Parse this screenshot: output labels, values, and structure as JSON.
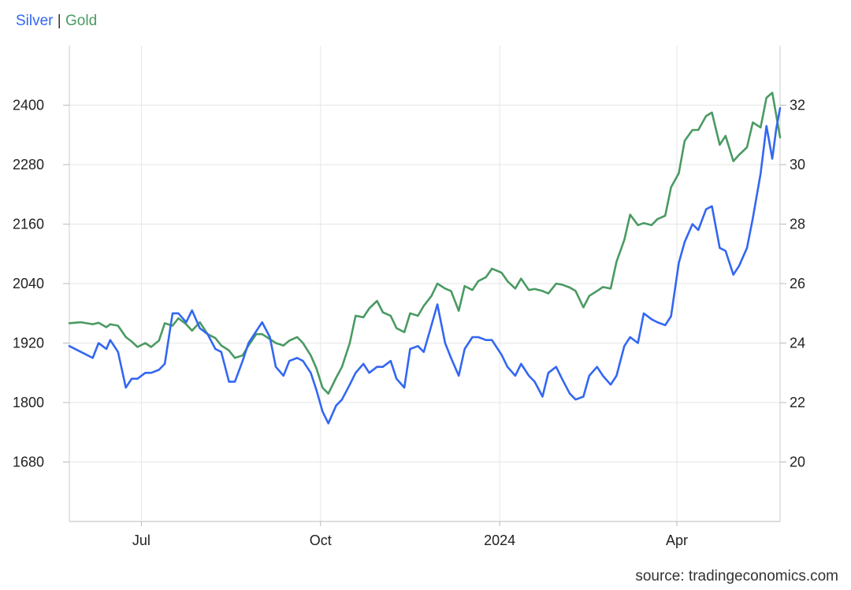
{
  "legend": {
    "silver": "Silver",
    "separator": "|",
    "gold": "Gold"
  },
  "source": "source: tradingeconomics.com",
  "chart_data": {
    "type": "line",
    "x_range": [
      "2023-05-25",
      "2024-05-24"
    ],
    "x_ticks": [
      {
        "label": "Jul",
        "date": "2023-07-01"
      },
      {
        "label": "Oct",
        "date": "2023-10-01"
      },
      {
        "label": "2024",
        "date": "2024-01-01"
      },
      {
        "label": "Apr",
        "date": "2024-04-01"
      }
    ],
    "y_left": {
      "series": "Gold",
      "lim": [
        1560,
        2520
      ],
      "ticks": [
        1680,
        1800,
        1920,
        2040,
        2160,
        2280,
        2400
      ]
    },
    "y_right": {
      "series": "Silver",
      "lim": [
        18,
        34
      ],
      "ticks": [
        20,
        22,
        24,
        26,
        28,
        30,
        32
      ]
    },
    "grid": true,
    "legend_position": "top-left",
    "colors": {
      "silver": "#3367f2",
      "gold": "#4a9a62"
    },
    "series": [
      {
        "name": "Silver",
        "axis": "right",
        "points": [
          [
            "2023-05-25",
            23.9
          ],
          [
            "2023-05-31",
            23.7
          ],
          [
            "2023-06-06",
            23.5
          ],
          [
            "2023-06-09",
            24.0
          ],
          [
            "2023-06-13",
            23.8
          ],
          [
            "2023-06-15",
            24.1
          ],
          [
            "2023-06-19",
            23.7
          ],
          [
            "2023-06-23",
            22.5
          ],
          [
            "2023-06-26",
            22.8
          ],
          [
            "2023-06-29",
            22.8
          ],
          [
            "2023-07-03",
            23.0
          ],
          [
            "2023-07-06",
            23.0
          ],
          [
            "2023-07-10",
            23.1
          ],
          [
            "2023-07-13",
            23.3
          ],
          [
            "2023-07-17",
            25.0
          ],
          [
            "2023-07-20",
            25.0
          ],
          [
            "2023-07-24",
            24.7
          ],
          [
            "2023-07-27",
            25.1
          ],
          [
            "2023-07-31",
            24.5
          ],
          [
            "2023-08-04",
            24.3
          ],
          [
            "2023-08-08",
            23.8
          ],
          [
            "2023-08-11",
            23.7
          ],
          [
            "2023-08-15",
            22.7
          ],
          [
            "2023-08-18",
            22.7
          ],
          [
            "2023-08-22",
            23.4
          ],
          [
            "2023-08-25",
            24.0
          ],
          [
            "2023-08-29",
            24.4
          ],
          [
            "2023-09-01",
            24.7
          ],
          [
            "2023-09-05",
            24.2
          ],
          [
            "2023-09-08",
            23.2
          ],
          [
            "2023-09-12",
            22.9
          ],
          [
            "2023-09-15",
            23.4
          ],
          [
            "2023-09-19",
            23.5
          ],
          [
            "2023-09-22",
            23.4
          ],
          [
            "2023-09-26",
            23.0
          ],
          [
            "2023-09-29",
            22.4
          ],
          [
            "2023-10-02",
            21.7
          ],
          [
            "2023-10-05",
            21.3
          ],
          [
            "2023-10-09",
            21.9
          ],
          [
            "2023-10-12",
            22.1
          ],
          [
            "2023-10-16",
            22.6
          ],
          [
            "2023-10-19",
            23.0
          ],
          [
            "2023-10-23",
            23.3
          ],
          [
            "2023-10-26",
            23.0
          ],
          [
            "2023-10-30",
            23.2
          ],
          [
            "2023-11-02",
            23.2
          ],
          [
            "2023-11-06",
            23.4
          ],
          [
            "2023-11-09",
            22.8
          ],
          [
            "2023-11-13",
            22.5
          ],
          [
            "2023-11-16",
            23.8
          ],
          [
            "2023-11-20",
            23.9
          ],
          [
            "2023-11-23",
            23.7
          ],
          [
            "2023-11-27",
            24.6
          ],
          [
            "2023-11-30",
            25.3
          ],
          [
            "2023-12-04",
            24.0
          ],
          [
            "2023-12-07",
            23.5
          ],
          [
            "2023-12-11",
            22.9
          ],
          [
            "2023-12-14",
            23.8
          ],
          [
            "2023-12-18",
            24.2
          ],
          [
            "2023-12-21",
            24.2
          ],
          [
            "2023-12-25",
            24.1
          ],
          [
            "2023-12-28",
            24.1
          ],
          [
            "2024-01-02",
            23.6
          ],
          [
            "2024-01-05",
            23.2
          ],
          [
            "2024-01-09",
            22.9
          ],
          [
            "2024-01-12",
            23.3
          ],
          [
            "2024-01-16",
            22.9
          ],
          [
            "2024-01-19",
            22.7
          ],
          [
            "2024-01-23",
            22.2
          ],
          [
            "2024-01-26",
            23.0
          ],
          [
            "2024-01-30",
            23.2
          ],
          [
            "2024-02-02",
            22.8
          ],
          [
            "2024-02-06",
            22.3
          ],
          [
            "2024-02-09",
            22.1
          ],
          [
            "2024-02-13",
            22.2
          ],
          [
            "2024-02-16",
            22.9
          ],
          [
            "2024-02-20",
            23.2
          ],
          [
            "2024-02-23",
            22.9
          ],
          [
            "2024-02-27",
            22.6
          ],
          [
            "2024-03-01",
            22.9
          ],
          [
            "2024-03-05",
            23.9
          ],
          [
            "2024-03-08",
            24.2
          ],
          [
            "2024-03-12",
            24.0
          ],
          [
            "2024-03-15",
            25.0
          ],
          [
            "2024-03-19",
            24.8
          ],
          [
            "2024-03-22",
            24.7
          ],
          [
            "2024-03-26",
            24.6
          ],
          [
            "2024-03-29",
            24.9
          ],
          [
            "2024-04-02",
            26.7
          ],
          [
            "2024-04-05",
            27.4
          ],
          [
            "2024-04-09",
            28.0
          ],
          [
            "2024-04-12",
            27.8
          ],
          [
            "2024-04-16",
            28.5
          ],
          [
            "2024-04-19",
            28.6
          ],
          [
            "2024-04-23",
            27.2
          ],
          [
            "2024-04-26",
            27.1
          ],
          [
            "2024-04-30",
            26.3
          ],
          [
            "2024-05-03",
            26.6
          ],
          [
            "2024-05-07",
            27.2
          ],
          [
            "2024-05-10",
            28.2
          ],
          [
            "2024-05-14",
            29.7
          ],
          [
            "2024-05-17",
            31.3
          ],
          [
            "2024-05-20",
            30.2
          ],
          [
            "2024-05-22",
            31.2
          ],
          [
            "2024-05-24",
            31.9
          ]
        ]
      },
      {
        "name": "Gold",
        "axis": "left",
        "points": [
          [
            "2023-05-25",
            1960
          ],
          [
            "2023-05-31",
            1962
          ],
          [
            "2023-06-06",
            1958
          ],
          [
            "2023-06-09",
            1961
          ],
          [
            "2023-06-13",
            1952
          ],
          [
            "2023-06-15",
            1958
          ],
          [
            "2023-06-19",
            1955
          ],
          [
            "2023-06-23",
            1932
          ],
          [
            "2023-06-26",
            1923
          ],
          [
            "2023-06-29",
            1912
          ],
          [
            "2023-07-03",
            1920
          ],
          [
            "2023-07-06",
            1912
          ],
          [
            "2023-07-10",
            1925
          ],
          [
            "2023-07-13",
            1960
          ],
          [
            "2023-07-17",
            1955
          ],
          [
            "2023-07-20",
            1970
          ],
          [
            "2023-07-24",
            1958
          ],
          [
            "2023-07-27",
            1945
          ],
          [
            "2023-07-31",
            1962
          ],
          [
            "2023-08-04",
            1938
          ],
          [
            "2023-08-08",
            1930
          ],
          [
            "2023-08-11",
            1915
          ],
          [
            "2023-08-15",
            1905
          ],
          [
            "2023-08-18",
            1890
          ],
          [
            "2023-08-22",
            1895
          ],
          [
            "2023-08-25",
            1915
          ],
          [
            "2023-08-29",
            1938
          ],
          [
            "2023-09-01",
            1938
          ],
          [
            "2023-09-05",
            1928
          ],
          [
            "2023-09-08",
            1920
          ],
          [
            "2023-09-12",
            1915
          ],
          [
            "2023-09-15",
            1925
          ],
          [
            "2023-09-19",
            1932
          ],
          [
            "2023-09-22",
            1920
          ],
          [
            "2023-09-26",
            1895
          ],
          [
            "2023-09-29",
            1868
          ],
          [
            "2023-10-02",
            1830
          ],
          [
            "2023-10-05",
            1818
          ],
          [
            "2023-10-09",
            1850
          ],
          [
            "2023-10-12",
            1872
          ],
          [
            "2023-10-16",
            1920
          ],
          [
            "2023-10-19",
            1975
          ],
          [
            "2023-10-23",
            1972
          ],
          [
            "2023-10-26",
            1990
          ],
          [
            "2023-10-30",
            2005
          ],
          [
            "2023-11-02",
            1982
          ],
          [
            "2023-11-06",
            1975
          ],
          [
            "2023-11-09",
            1950
          ],
          [
            "2023-11-13",
            1942
          ],
          [
            "2023-11-16",
            1980
          ],
          [
            "2023-11-20",
            1975
          ],
          [
            "2023-11-23",
            1995
          ],
          [
            "2023-11-27",
            2015
          ],
          [
            "2023-11-30",
            2040
          ],
          [
            "2023-12-04",
            2030
          ],
          [
            "2023-12-07",
            2025
          ],
          [
            "2023-12-11",
            1985
          ],
          [
            "2023-12-14",
            2035
          ],
          [
            "2023-12-18",
            2027
          ],
          [
            "2023-12-21",
            2045
          ],
          [
            "2023-12-25",
            2053
          ],
          [
            "2023-12-28",
            2070
          ],
          [
            "2024-01-02",
            2062
          ],
          [
            "2024-01-05",
            2045
          ],
          [
            "2024-01-09",
            2030
          ],
          [
            "2024-01-12",
            2050
          ],
          [
            "2024-01-16",
            2027
          ],
          [
            "2024-01-19",
            2029
          ],
          [
            "2024-01-23",
            2025
          ],
          [
            "2024-01-26",
            2020
          ],
          [
            "2024-01-30",
            2040
          ],
          [
            "2024-02-02",
            2038
          ],
          [
            "2024-02-06",
            2032
          ],
          [
            "2024-02-09",
            2025
          ],
          [
            "2024-02-13",
            1992
          ],
          [
            "2024-02-16",
            2015
          ],
          [
            "2024-02-20",
            2025
          ],
          [
            "2024-02-23",
            2033
          ],
          [
            "2024-02-27",
            2030
          ],
          [
            "2024-03-01",
            2084
          ],
          [
            "2024-03-05",
            2128
          ],
          [
            "2024-03-08",
            2179
          ],
          [
            "2024-03-12",
            2158
          ],
          [
            "2024-03-15",
            2162
          ],
          [
            "2024-03-19",
            2158
          ],
          [
            "2024-03-22",
            2170
          ],
          [
            "2024-03-26",
            2177
          ],
          [
            "2024-03-29",
            2234
          ],
          [
            "2024-04-02",
            2263
          ],
          [
            "2024-04-05",
            2328
          ],
          [
            "2024-04-09",
            2350
          ],
          [
            "2024-04-12",
            2350
          ],
          [
            "2024-04-16",
            2378
          ],
          [
            "2024-04-19",
            2385
          ],
          [
            "2024-04-23",
            2320
          ],
          [
            "2024-04-26",
            2338
          ],
          [
            "2024-04-30",
            2287
          ],
          [
            "2024-05-03",
            2300
          ],
          [
            "2024-05-07",
            2315
          ],
          [
            "2024-05-10",
            2365
          ],
          [
            "2024-05-14",
            2355
          ],
          [
            "2024-05-17",
            2415
          ],
          [
            "2024-05-20",
            2425
          ],
          [
            "2024-05-22",
            2380
          ],
          [
            "2024-05-24",
            2335
          ]
        ]
      }
    ]
  }
}
